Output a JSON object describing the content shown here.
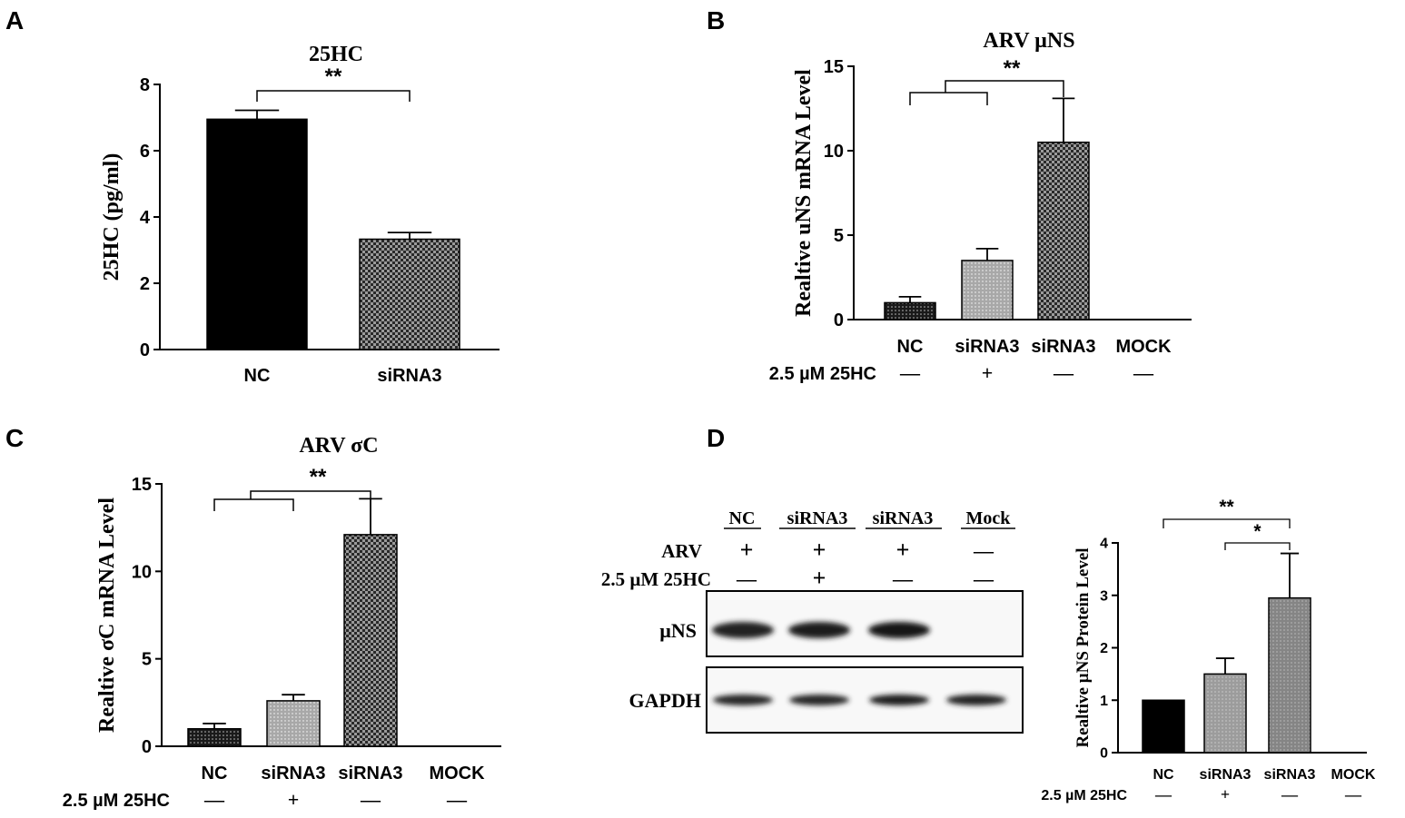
{
  "panels": {
    "A": "A",
    "B": "B",
    "C": "C",
    "D": "D"
  },
  "colors": {
    "solid": "#000000",
    "nc_dots": "#1a1a1a",
    "gray_dots": "#a8a8a8",
    "checker_dark": "#2a2a2a",
    "checker_light": "#9a9a9a",
    "d_gray1": "#9c9c9c",
    "d_gray2": "#858585"
  },
  "chart_data": [
    {
      "id": "A",
      "type": "bar",
      "title": "25HC",
      "ylabel": "25HC (pg/ml)",
      "xlabel": "",
      "ylim": [
        0,
        8
      ],
      "yticks": [
        0,
        2,
        4,
        6,
        8
      ],
      "categories": [
        "NC",
        "siRNA3"
      ],
      "values": [
        6.95,
        3.33
      ],
      "errors": [
        0.27,
        0.2
      ],
      "fills": [
        "solid",
        "checker"
      ],
      "significance": [
        {
          "from": 0,
          "to": 1,
          "label": "**"
        }
      ]
    },
    {
      "id": "B",
      "type": "bar",
      "title": "ARV µNS",
      "ylabel": "Realtive uNS mRNA Level",
      "xlabel": "",
      "ylim": [
        0,
        15
      ],
      "yticks": [
        0,
        5,
        10,
        15
      ],
      "categories": [
        "NC",
        "siRNA3",
        "siRNA3",
        "MOCK"
      ],
      "values": [
        1.0,
        3.5,
        10.5,
        0
      ],
      "errors": [
        0.35,
        0.7,
        2.6,
        0
      ],
      "fills": [
        "nc_dots",
        "gray_dots",
        "checker",
        "none"
      ],
      "treatment_label": "2.5 µM 25HC",
      "treatment": [
        "—",
        "+",
        "—",
        "—"
      ],
      "significance": [
        {
          "group": [
            0,
            1
          ],
          "to": 2,
          "label": "**"
        }
      ]
    },
    {
      "id": "C",
      "type": "bar",
      "title": "ARV σC",
      "ylabel": "Realtive σC mRNA Level",
      "xlabel": "",
      "ylim": [
        0,
        15
      ],
      "yticks": [
        0,
        5,
        10,
        15
      ],
      "categories": [
        "NC",
        "siRNA3",
        "siRNA3",
        "MOCK"
      ],
      "values": [
        1.0,
        2.6,
        12.1,
        0
      ],
      "errors": [
        0.3,
        0.35,
        2.05,
        0
      ],
      "fills": [
        "nc_dots",
        "gray_dots",
        "checker",
        "none"
      ],
      "treatment_label": "2.5 µM 25HC",
      "treatment": [
        "—",
        "+",
        "—",
        "—"
      ],
      "significance": [
        {
          "group": [
            0,
            1
          ],
          "to": 2,
          "label": "**"
        }
      ]
    },
    {
      "id": "D",
      "type": "bar",
      "title": "",
      "ylabel": "Realtive µNS Protein Level",
      "xlabel": "",
      "ylim": [
        0,
        4
      ],
      "yticks": [
        0,
        1,
        2,
        3,
        4
      ],
      "categories": [
        "NC",
        "siRNA3",
        "siRNA3",
        "MOCK"
      ],
      "values": [
        1.0,
        1.5,
        2.95,
        0
      ],
      "errors": [
        0,
        0.3,
        0.85,
        0
      ],
      "fills": [
        "solid",
        "d_gray1",
        "d_gray2",
        "none"
      ],
      "treatment_label": "2.5 µM 25HC",
      "treatment": [
        "—",
        "+",
        "—",
        "—"
      ],
      "significance": [
        {
          "from": 0,
          "to": 2,
          "label": "**"
        },
        {
          "from": 1,
          "to": 2,
          "label": "*"
        }
      ]
    }
  ],
  "blot": {
    "columns": [
      "NC",
      "siRNA3",
      "siRNA3",
      "Mock"
    ],
    "row_labels": [
      "ARV",
      "2.5 µM 25HC"
    ],
    "arv": [
      "+",
      "+",
      "+",
      "—"
    ],
    "hc": [
      "—",
      "+",
      "—",
      "—"
    ],
    "bands": [
      "µNS",
      "GAPDH"
    ],
    "uns_intensity": [
      0.9,
      0.95,
      1.0,
      0
    ],
    "gapdh_intensity": [
      0.85,
      0.85,
      0.95,
      0.9
    ]
  }
}
